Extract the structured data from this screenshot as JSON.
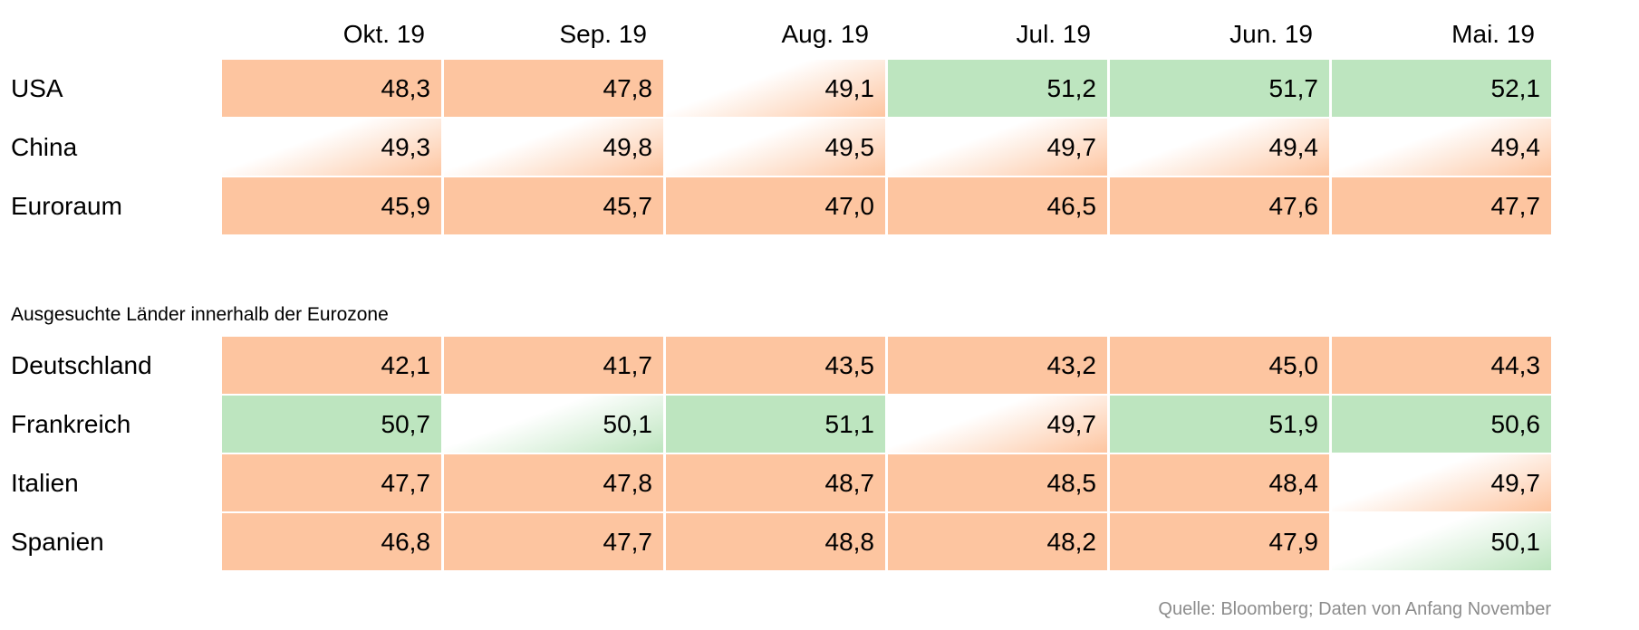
{
  "chart_data": {
    "type": "table",
    "columns": [
      "Okt. 19",
      "Sep. 19",
      "Aug. 19",
      "Jul. 19",
      "Jun. 19",
      "Mai. 19"
    ],
    "groups": [
      {
        "title": "",
        "rows": [
          {
            "label": "USA",
            "values": [
              "48,3",
              "47,8",
              "49,1",
              "51,2",
              "51,7",
              "52,1"
            ]
          },
          {
            "label": "China",
            "values": [
              "49,3",
              "49,8",
              "49,5",
              "49,7",
              "49,4",
              "49,4"
            ]
          },
          {
            "label": "Euroraum",
            "values": [
              "45,9",
              "45,7",
              "47,0",
              "46,5",
              "47,6",
              "47,7"
            ]
          }
        ]
      },
      {
        "title": "Ausgesuchte Länder innerhalb der Eurozone",
        "rows": [
          {
            "label": "Deutschland",
            "values": [
              "42,1",
              "41,7",
              "43,5",
              "43,2",
              "45,0",
              "44,3"
            ]
          },
          {
            "label": "Frankreich",
            "values": [
              "50,7",
              "50,1",
              "51,1",
              "49,7",
              "51,9",
              "50,6"
            ]
          },
          {
            "label": "Italien",
            "values": [
              "47,7",
              "47,8",
              "48,7",
              "48,5",
              "48,4",
              "49,7"
            ]
          },
          {
            "label": "Spanien",
            "values": [
              "46,8",
              "47,7",
              "48,8",
              "48,2",
              "47,9",
              "50,1"
            ]
          }
        ]
      }
    ],
    "source": "Quelle: Bloomberg; Daten von Anfang November",
    "colors": {
      "below_50": "#fdc5a0",
      "above_50": "#bde5bf",
      "background": "#ffffff",
      "source_text": "#8c8c8c"
    }
  }
}
